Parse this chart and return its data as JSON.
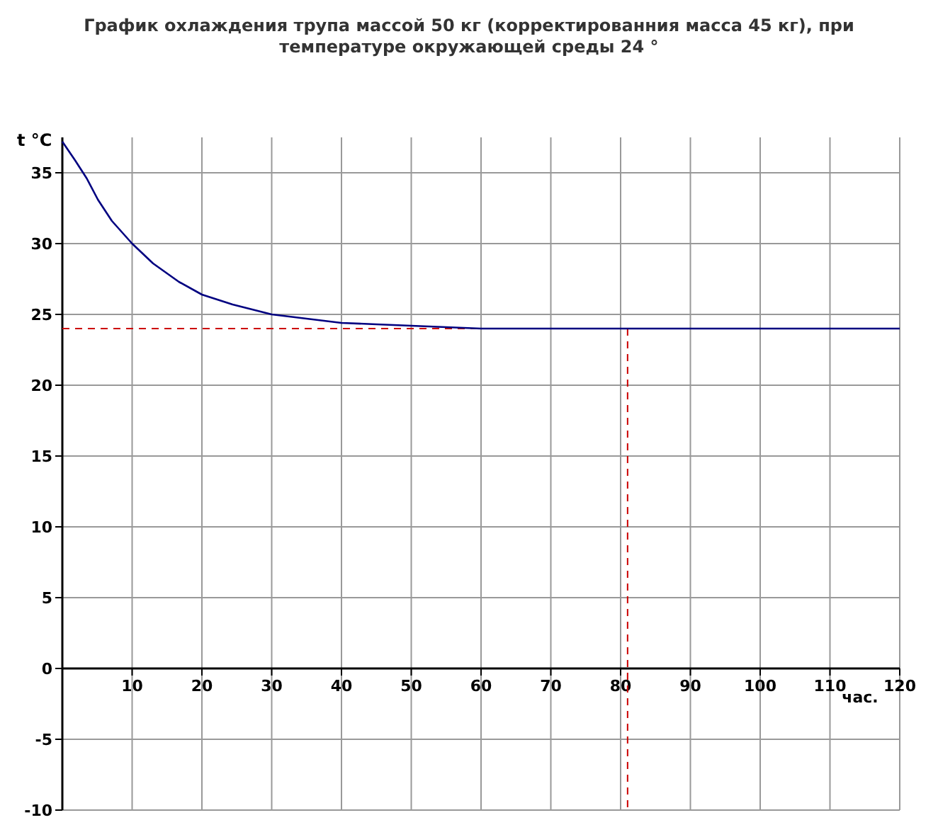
{
  "chart_data": {
    "type": "line",
    "title": "График охлаждения трупа массой 50 кг (корректированния масса 45 кг), при температуре окружающей среды 24 °",
    "xlabel": "час.",
    "ylabel": "t °C",
    "series": [
      {
        "color": "#000080",
        "x": [
          0,
          1.8,
          3.5,
          5.1,
          7.1,
          10,
          13,
          16.7,
          20,
          24.4,
          30,
          35,
          40,
          45,
          50,
          55,
          60,
          81,
          120
        ],
        "values": [
          37.2,
          35.9,
          34.6,
          33.1,
          31.6,
          30,
          28.6,
          27.3,
          26.4,
          25.7,
          25,
          24.7,
          24.4,
          24.3,
          24.2,
          24.1,
          24,
          24,
          24
        ]
      }
    ],
    "xlim": [
      0,
      120
    ],
    "xticks": [
      10,
      20,
      30,
      40,
      50,
      60,
      70,
      80,
      90,
      100,
      110,
      120
    ],
    "ylim": [
      -10,
      37.5
    ],
    "yticks": [
      -10,
      -5,
      0,
      5,
      10,
      15,
      20,
      25,
      30,
      35
    ],
    "grid": true,
    "line_style": "solid",
    "marker": "none",
    "ref_lines": [
      {
        "axis": "y",
        "value": 24,
        "color": "#cc0000",
        "line_style": "dashed"
      },
      {
        "axis": "x",
        "value": 81,
        "color": "#cc0000",
        "line_style": "dashed"
      }
    ]
  }
}
